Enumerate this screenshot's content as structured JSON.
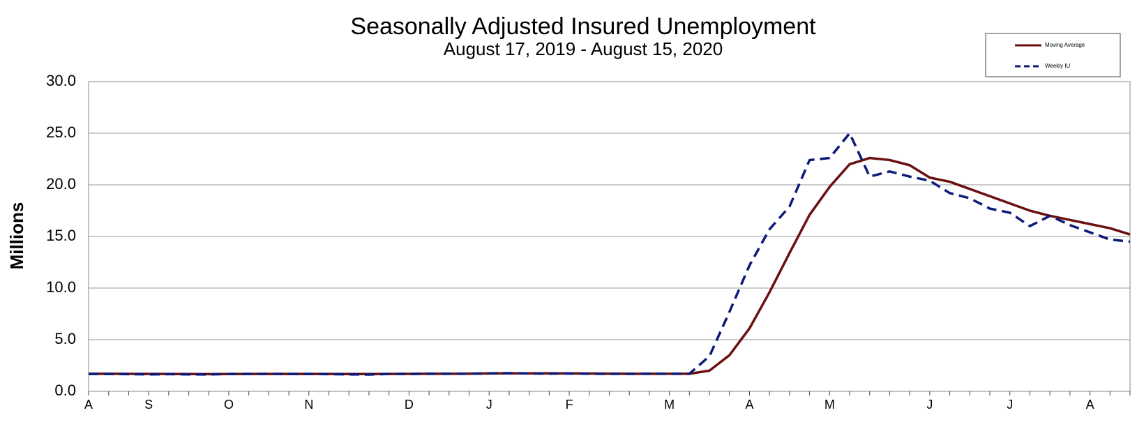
{
  "chart_data": {
    "type": "line",
    "title": "Seasonally Adjusted Insured Unemployment",
    "subtitle": "August 17, 2019 - August 15, 2020",
    "y_label": "Millions",
    "categories": [
      "A",
      null,
      null,
      "S",
      null,
      null,
      null,
      "O",
      null,
      null,
      null,
      "N",
      null,
      null,
      null,
      null,
      "D",
      null,
      null,
      null,
      "J",
      null,
      null,
      null,
      "F",
      null,
      null,
      null,
      null,
      "M",
      null,
      null,
      null,
      "A",
      null,
      null,
      null,
      "M",
      null,
      null,
      null,
      null,
      "J",
      null,
      null,
      null,
      "J",
      null,
      null,
      null,
      "A",
      null,
      null
    ],
    "series": [
      {
        "name": "Moving Average",
        "color": "#6b0f0f",
        "dash": false,
        "values": [
          1.7,
          1.7,
          1.69,
          1.68,
          1.68,
          1.67,
          1.66,
          1.67,
          1.68,
          1.68,
          1.68,
          1.68,
          1.68,
          1.67,
          1.67,
          1.68,
          1.69,
          1.7,
          1.7,
          1.71,
          1.73,
          1.74,
          1.74,
          1.74,
          1.73,
          1.72,
          1.71,
          1.7,
          1.7,
          1.7,
          1.7,
          2.0,
          3.5,
          6.1,
          9.6,
          13.4,
          17.1,
          19.8,
          22.0,
          22.6,
          22.4,
          21.9,
          20.7,
          20.3,
          19.6,
          18.9,
          18.2,
          17.5,
          17.0,
          16.6,
          16.2,
          15.8,
          15.2
        ]
      },
      {
        "name": "Weekly IU",
        "color": "#0d1a7a",
        "dash": true,
        "values": [
          1.68,
          1.68,
          1.66,
          1.64,
          1.66,
          1.64,
          1.63,
          1.68,
          1.68,
          1.69,
          1.68,
          1.68,
          1.66,
          1.64,
          1.62,
          1.68,
          1.68,
          1.7,
          1.7,
          1.7,
          1.74,
          1.76,
          1.73,
          1.71,
          1.73,
          1.7,
          1.69,
          1.69,
          1.7,
          1.7,
          1.7,
          3.4,
          7.7,
          12.2,
          15.7,
          17.9,
          22.4,
          22.6,
          25.0,
          20.8,
          21.3,
          20.8,
          20.4,
          19.2,
          18.7,
          17.7,
          17.3,
          16.0,
          17.0,
          16.1,
          15.4,
          14.7,
          14.5
        ]
      }
    ],
    "ylim": [
      0,
      30
    ],
    "yticks": [
      {
        "value": 0,
        "label": "0.0"
      },
      {
        "value": 5,
        "label": "5.0"
      },
      {
        "value": 10,
        "label": "10.0"
      },
      {
        "value": 15,
        "label": "15.0"
      },
      {
        "value": 20,
        "label": "20.0"
      },
      {
        "value": 25,
        "label": "25.0"
      },
      {
        "value": 30,
        "label": "30.0"
      }
    ],
    "grid": true,
    "legend": "upper right"
  }
}
